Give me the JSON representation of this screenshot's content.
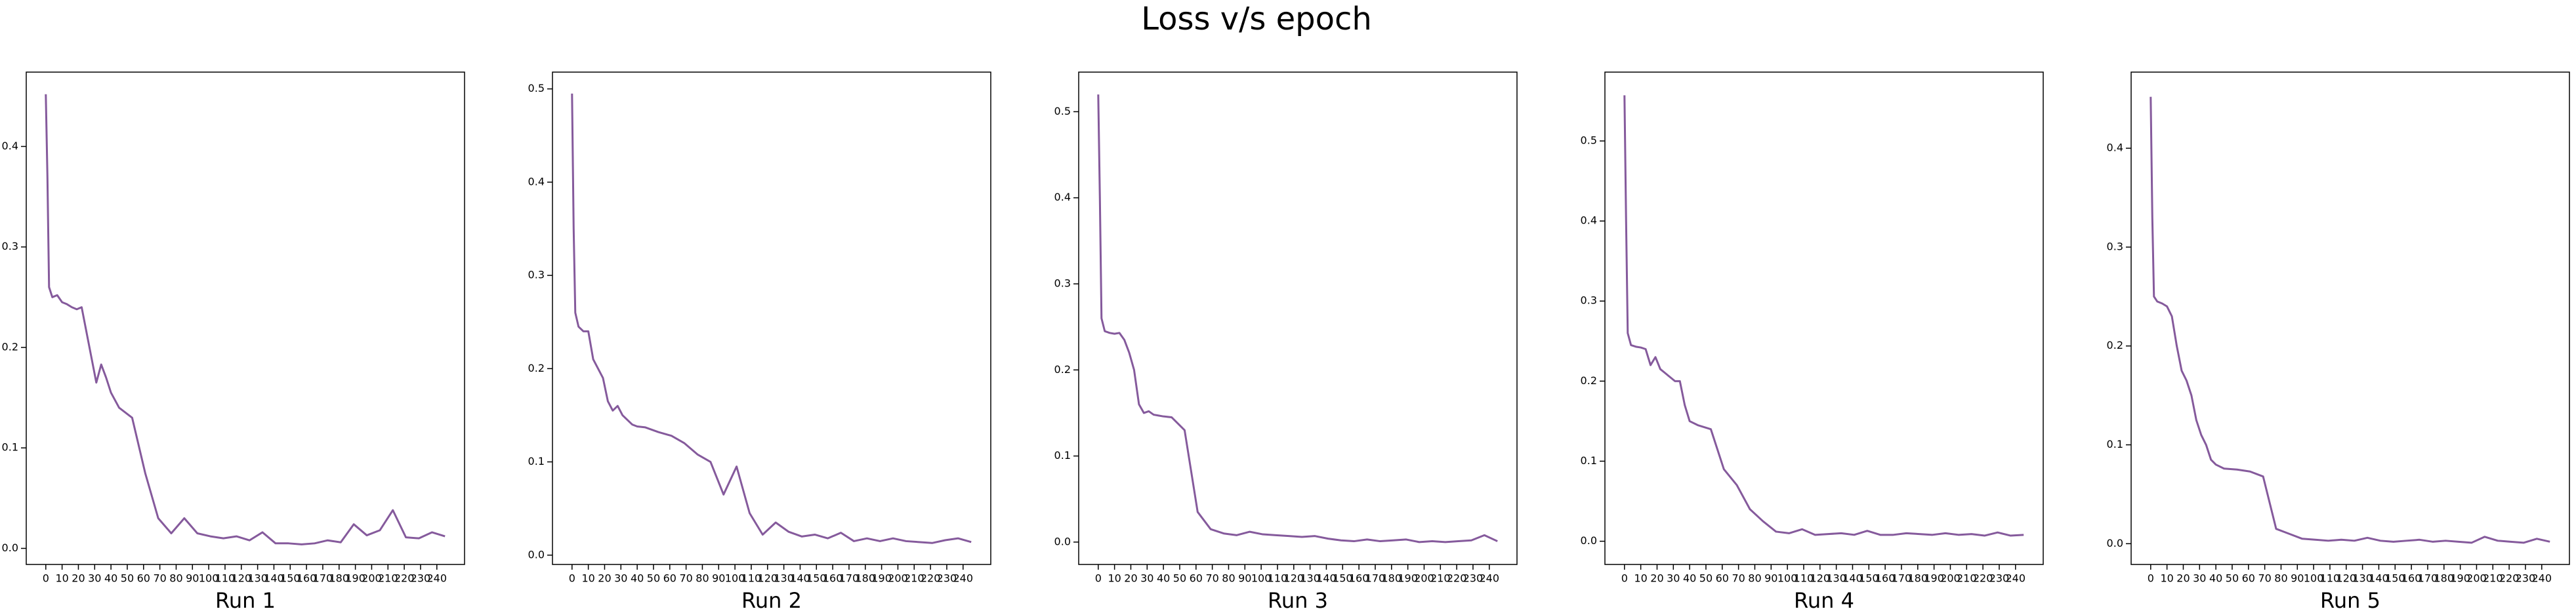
{
  "title": "Loss v/s epoch",
  "chart_data": [
    {
      "type": "line",
      "xlabel": "Run 1",
      "color": "#855a9c",
      "x": [
        0,
        1,
        2,
        4,
        7,
        10,
        13,
        16,
        19,
        22,
        25,
        28,
        31,
        34,
        37,
        40,
        45,
        53,
        61,
        69,
        77,
        85,
        93,
        101,
        109,
        117,
        125,
        133,
        141,
        149,
        157,
        165,
        173,
        181,
        189,
        197,
        205,
        213,
        221,
        229,
        237,
        245
      ],
      "values": [
        0.452,
        0.37,
        0.26,
        0.25,
        0.252,
        0.245,
        0.243,
        0.24,
        0.238,
        0.24,
        0.215,
        0.19,
        0.165,
        0.183,
        0.17,
        0.155,
        0.14,
        0.13,
        0.075,
        0.03,
        0.015,
        0.03,
        0.015,
        0.012,
        0.01,
        0.012,
        0.008,
        0.016,
        0.005,
        0.005,
        0.004,
        0.005,
        0.008,
        0.006,
        0.024,
        0.013,
        0.018,
        0.038,
        0.011,
        0.01,
        0.016,
        0.012
      ],
      "xlim": [
        -12,
        257
      ],
      "xticks": [
        0,
        10,
        20,
        30,
        40,
        50,
        60,
        70,
        80,
        90,
        100,
        110,
        120,
        130,
        140,
        150,
        160,
        170,
        180,
        190,
        200,
        210,
        220,
        230,
        240
      ],
      "ylim": [
        -0.016,
        0.474
      ],
      "yticks": [
        {
          "value": 0,
          "label": "0.0"
        },
        0.1,
        0.2,
        0.3,
        0.4
      ]
    },
    {
      "type": "line",
      "xlabel": "Run 2",
      "color": "#855a9c",
      "x": [
        0,
        1,
        2,
        4,
        7,
        10,
        13,
        16,
        19,
        22,
        25,
        28,
        31,
        34,
        37,
        40,
        45,
        53,
        61,
        69,
        77,
        85,
        93,
        101,
        109,
        117,
        125,
        133,
        141,
        149,
        157,
        165,
        173,
        181,
        189,
        197,
        205,
        213,
        221,
        229,
        237,
        245
      ],
      "values": [
        0.495,
        0.35,
        0.26,
        0.245,
        0.24,
        0.24,
        0.21,
        0.2,
        0.19,
        0.165,
        0.155,
        0.16,
        0.15,
        0.145,
        0.14,
        0.138,
        0.137,
        0.132,
        0.128,
        0.12,
        0.108,
        0.1,
        0.065,
        0.095,
        0.045,
        0.022,
        0.035,
        0.025,
        0.02,
        0.022,
        0.018,
        0.024,
        0.015,
        0.018,
        0.015,
        0.018,
        0.015,
        0.014,
        0.013,
        0.016,
        0.018,
        0.014
      ],
      "xlim": [
        -12,
        257
      ],
      "xticks": [
        0,
        10,
        20,
        30,
        40,
        50,
        60,
        70,
        80,
        90,
        100,
        110,
        120,
        130,
        140,
        150,
        160,
        170,
        180,
        190,
        200,
        210,
        220,
        230,
        240
      ],
      "ylim": [
        -0.01,
        0.518
      ],
      "yticks": [
        {
          "value": 0,
          "label": "0.0"
        },
        0.1,
        0.2,
        0.3,
        0.4,
        0.5
      ]
    },
    {
      "type": "line",
      "xlabel": "Run 3",
      "color": "#855a9c",
      "x": [
        0,
        1,
        2,
        4,
        7,
        10,
        13,
        16,
        19,
        22,
        25,
        28,
        31,
        34,
        37,
        40,
        45,
        53,
        61,
        69,
        77,
        85,
        93,
        101,
        109,
        117,
        125,
        133,
        141,
        149,
        157,
        165,
        173,
        181,
        189,
        197,
        205,
        213,
        221,
        229,
        237,
        245
      ],
      "values": [
        0.52,
        0.4,
        0.26,
        0.245,
        0.243,
        0.242,
        0.243,
        0.235,
        0.22,
        0.2,
        0.16,
        0.15,
        0.152,
        0.148,
        0.147,
        0.146,
        0.145,
        0.13,
        0.035,
        0.015,
        0.01,
        0.008,
        0.012,
        0.009,
        0.008,
        0.007,
        0.006,
        0.007,
        0.004,
        0.002,
        0.001,
        0.003,
        0.001,
        0.002,
        0.003,
        0.0,
        0.001,
        0.0,
        0.001,
        0.002,
        0.008,
        0.001
      ],
      "xlim": [
        -12,
        257
      ],
      "xticks": [
        0,
        10,
        20,
        30,
        40,
        50,
        60,
        70,
        80,
        90,
        100,
        110,
        120,
        130,
        140,
        150,
        160,
        170,
        180,
        190,
        200,
        210,
        220,
        230,
        240
      ],
      "ylim": [
        -0.026,
        0.546
      ],
      "yticks": [
        {
          "value": 0,
          "label": "0.0"
        },
        0.1,
        0.2,
        0.3,
        0.4,
        0.5
      ]
    },
    {
      "type": "line",
      "xlabel": "Run 4",
      "color": "#855a9c",
      "x": [
        0,
        1,
        2,
        4,
        7,
        10,
        13,
        16,
        19,
        22,
        25,
        28,
        31,
        34,
        37,
        40,
        45,
        53,
        61,
        69,
        77,
        85,
        93,
        101,
        109,
        117,
        125,
        133,
        141,
        149,
        157,
        165,
        173,
        181,
        189,
        197,
        205,
        213,
        221,
        229,
        237,
        245
      ],
      "values": [
        0.557,
        0.4,
        0.26,
        0.245,
        0.243,
        0.242,
        0.24,
        0.22,
        0.23,
        0.215,
        0.21,
        0.205,
        0.2,
        0.2,
        0.17,
        0.15,
        0.145,
        0.14,
        0.09,
        0.07,
        0.04,
        0.025,
        0.012,
        0.01,
        0.015,
        0.008,
        0.009,
        0.01,
        0.008,
        0.013,
        0.008,
        0.008,
        0.01,
        0.009,
        0.008,
        0.01,
        0.008,
        0.009,
        0.007,
        0.011,
        0.007,
        0.008
      ],
      "xlim": [
        -12,
        257
      ],
      "xticks": [
        0,
        10,
        20,
        30,
        40,
        50,
        60,
        70,
        80,
        90,
        100,
        110,
        120,
        130,
        140,
        150,
        160,
        170,
        180,
        190,
        200,
        210,
        220,
        230,
        240
      ],
      "ylim": [
        -0.029,
        0.586
      ],
      "yticks": [
        {
          "value": 0,
          "label": "0.0"
        },
        0.1,
        0.2,
        0.3,
        0.4,
        0.5
      ]
    },
    {
      "type": "line",
      "xlabel": "Run 5",
      "color": "#855a9c",
      "x": [
        0,
        1,
        2,
        4,
        7,
        10,
        13,
        16,
        19,
        22,
        25,
        28,
        31,
        34,
        37,
        40,
        45,
        53,
        61,
        69,
        77,
        85,
        93,
        101,
        109,
        117,
        125,
        133,
        141,
        149,
        157,
        165,
        173,
        181,
        189,
        197,
        205,
        213,
        221,
        229,
        237,
        245
      ],
      "values": [
        0.452,
        0.33,
        0.25,
        0.245,
        0.243,
        0.24,
        0.23,
        0.2,
        0.175,
        0.165,
        0.15,
        0.125,
        0.11,
        0.1,
        0.085,
        0.08,
        0.076,
        0.075,
        0.073,
        0.068,
        0.015,
        0.01,
        0.005,
        0.004,
        0.003,
        0.004,
        0.003,
        0.006,
        0.003,
        0.002,
        0.003,
        0.004,
        0.002,
        0.003,
        0.002,
        0.001,
        0.007,
        0.003,
        0.002,
        0.001,
        0.005,
        0.002
      ],
      "xlim": [
        -12,
        257
      ],
      "xticks": [
        0,
        10,
        20,
        30,
        40,
        50,
        60,
        70,
        80,
        90,
        100,
        110,
        120,
        130,
        140,
        150,
        160,
        170,
        180,
        190,
        200,
        210,
        220,
        230,
        240
      ],
      "ylim": [
        -0.021,
        0.477
      ],
      "yticks": [
        {
          "value": 0,
          "label": "0.0"
        },
        0.1,
        0.2,
        0.3,
        0.4
      ]
    }
  ]
}
